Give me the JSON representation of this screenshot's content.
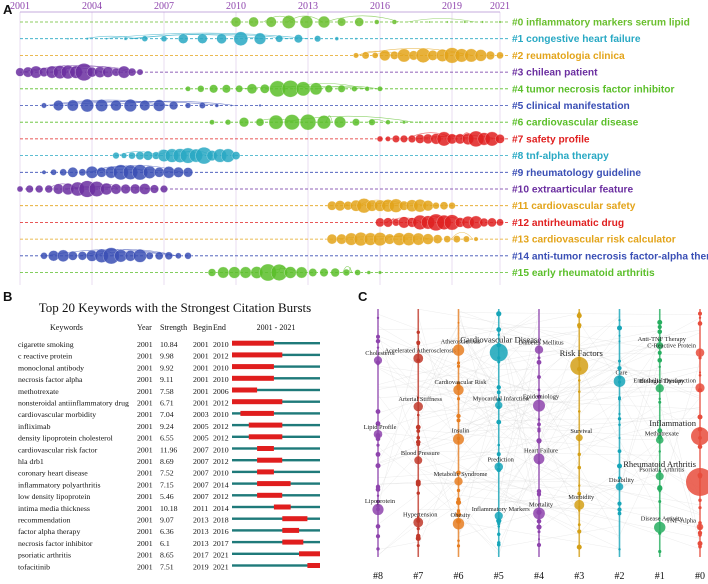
{
  "panels": {
    "a": "A",
    "b": "B",
    "c": "C"
  },
  "chart_data": [
    {
      "type": "timeline",
      "years": [
        "2001",
        "2004",
        "2007",
        "2010",
        "2013",
        "2016",
        "2019",
        "2021"
      ],
      "year_color": "#8e44ad",
      "clusters": [
        {
          "id": "#0",
          "label": "#0 inflammatory markers serum lipid",
          "color": "#6abf2e",
          "start": 2010,
          "end": 2021,
          "peak": 2012.5
        },
        {
          "id": "#1",
          "label": "#1 congestive heart failure",
          "color": "#29a9c4",
          "start": 2003,
          "end": 2015,
          "peak": 2010
        },
        {
          "id": "#2",
          "label": "#2 reumatologia clinica",
          "color": "#e3a41a",
          "start": 2015,
          "end": 2021,
          "peak": 2018.5
        },
        {
          "id": "#3",
          "label": "#3 chilean patient",
          "color": "#6b2fa0",
          "start": 2001,
          "end": 2006,
          "peak": 2003.5
        },
        {
          "id": "#4",
          "label": "#4 tumor necrosis factor inhibitor",
          "color": "#5bbf2a",
          "start": 2008,
          "end": 2016,
          "peak": 2012
        },
        {
          "id": "#5",
          "label": "#5 clinical manifestation",
          "color": "#3a4fb5",
          "start": 2002,
          "end": 2011,
          "peak": 2005
        },
        {
          "id": "#6",
          "label": "#6 cardiovascular disease",
          "color": "#5bbf2a",
          "start": 2009,
          "end": 2019,
          "peak": 2012.5
        },
        {
          "id": "#7",
          "label": "#7 safety profile",
          "color": "#e02020",
          "start": 2016,
          "end": 2021,
          "peak": 2019.5
        },
        {
          "id": "#8",
          "label": "#8 tnf-alpha therapy",
          "color": "#29a9c4",
          "start": 2005,
          "end": 2010,
          "peak": 2008.5
        },
        {
          "id": "#9",
          "label": "#9 rheumatology guideline",
          "color": "#3a4fb5",
          "start": 2002,
          "end": 2008,
          "peak": 2005.5
        },
        {
          "id": "#10",
          "label": "#10 extraarticular feature",
          "color": "#6b2fa0",
          "start": 2001,
          "end": 2007,
          "peak": 2004
        },
        {
          "id": "#11",
          "label": "#11 cardiovascular safety",
          "color": "#e3a41a",
          "start": 2014,
          "end": 2019,
          "peak": 2016
        },
        {
          "id": "#12",
          "label": "#12 antirheumatic drug",
          "color": "#e02020",
          "start": 2016,
          "end": 2021,
          "peak": 2018.5
        },
        {
          "id": "#13",
          "label": "#13 cardiovascular risk calculator",
          "color": "#e3a41a",
          "start": 2014,
          "end": 2020,
          "peak": 2016.5
        },
        {
          "id": "#14",
          "label": "#14 anti-tumor necrosis factor-alpha therapy",
          "color": "#3a4fb5",
          "start": 2002,
          "end": 2008,
          "peak": 2004.5
        },
        {
          "id": "#15",
          "label": "#15 early rheumatoid arthritis",
          "color": "#5bbf2a",
          "start": 2009,
          "end": 2016,
          "peak": 2011.5
        }
      ]
    },
    {
      "type": "burst-table",
      "title": "Top 20 Keywords with the Strongest Citation Bursts",
      "headers": {
        "keywords": "Keywords",
        "year": "Year",
        "strength": "Strength",
        "begin": "Begin",
        "end": "End",
        "range": "2001 - 2021"
      },
      "range": [
        2001,
        2021
      ],
      "rows": [
        {
          "keyword": "cigarette smoking",
          "year": "2001",
          "strength": "10.84",
          "begin": "2001",
          "end": "2010"
        },
        {
          "keyword": "c reactive protein",
          "year": "2001",
          "strength": "9.98",
          "begin": "2001",
          "end": "2012"
        },
        {
          "keyword": "monoclonal antibody",
          "year": "2001",
          "strength": "9.92",
          "begin": "2001",
          "end": "2010"
        },
        {
          "keyword": "necrosis factor alpha",
          "year": "2001",
          "strength": "9.11",
          "begin": "2001",
          "end": "2010"
        },
        {
          "keyword": "methotrexate",
          "year": "2001",
          "strength": "7.58",
          "begin": "2001",
          "end": "2006"
        },
        {
          "keyword": "nonsteroidal antiinflammatory drug",
          "year": "2001",
          "strength": "6.71",
          "begin": "2001",
          "end": "2012"
        },
        {
          "keyword": "cardiovascular morbidity",
          "year": "2001",
          "strength": "7.04",
          "begin": "2003",
          "end": "2010"
        },
        {
          "keyword": "infliximab",
          "year": "2001",
          "strength": "9.24",
          "begin": "2005",
          "end": "2012"
        },
        {
          "keyword": "density lipoprotein cholesterol",
          "year": "2001",
          "strength": "6.55",
          "begin": "2005",
          "end": "2012"
        },
        {
          "keyword": "cardiovascular risk factor",
          "year": "2001",
          "strength": "11.96",
          "begin": "2007",
          "end": "2010"
        },
        {
          "keyword": "hla drb1",
          "year": "2001",
          "strength": "8.69",
          "begin": "2007",
          "end": "2012"
        },
        {
          "keyword": "coronary heart disease",
          "year": "2001",
          "strength": "7.52",
          "begin": "2007",
          "end": "2010"
        },
        {
          "keyword": "inflammatory polyarthritis",
          "year": "2001",
          "strength": "7.15",
          "begin": "2007",
          "end": "2014"
        },
        {
          "keyword": "low density lipoprotein",
          "year": "2001",
          "strength": "5.46",
          "begin": "2007",
          "end": "2012"
        },
        {
          "keyword": "intima media thickness",
          "year": "2001",
          "strength": "10.18",
          "begin": "2011",
          "end": "2014"
        },
        {
          "keyword": "recommendation",
          "year": "2001",
          "strength": "9.07",
          "begin": "2013",
          "end": "2018"
        },
        {
          "keyword": "factor alpha therapy",
          "year": "2001",
          "strength": "6.36",
          "begin": "2013",
          "end": "2016"
        },
        {
          "keyword": "necrosis factor inhibitor",
          "year": "2001",
          "strength": "6.1",
          "begin": "2013",
          "end": "2017"
        },
        {
          "keyword": "psoriatic arthritis",
          "year": "2001",
          "strength": "8.65",
          "begin": "2017",
          "end": "2021"
        },
        {
          "keyword": "tofacitinib",
          "year": "2001",
          "strength": "7.51",
          "begin": "2019",
          "end": "2021"
        }
      ],
      "colors": {
        "burst": "#e01e1e",
        "base": "#1f7a7a"
      }
    },
    {
      "type": "network-columns",
      "columns": [
        {
          "id": "#8",
          "color": "#8e44ad",
          "label": "#8",
          "items": [
            "Cholesterol",
            "Lipid Profile",
            "Lipoprotein"
          ]
        },
        {
          "id": "#7",
          "color": "#c0392b",
          "label": "#7",
          "items": [
            "Accelerated Atherosclerosis",
            "Arterial Stiffness",
            "Blood Pressure",
            "Hypertension"
          ]
        },
        {
          "id": "#6",
          "color": "#e67e22",
          "label": "#6",
          "items": [
            "Atherosclerosis",
            "Cardiovascular Risk",
            "Insulin",
            "Metabolic Syndrome",
            "Obesity"
          ]
        },
        {
          "id": "#5",
          "color": "#16a5b8",
          "label": "#5",
          "items": [
            "Cardiovascular Disease",
            "Myocardial Infarction",
            "Prediction",
            "Inflammatory Markers"
          ]
        },
        {
          "id": "#4",
          "color": "#8e44ad",
          "label": "#4",
          "items": [
            "Diabetes Mellitus",
            "Epidemiology",
            "Heart Failure",
            "Mortality"
          ]
        },
        {
          "id": "#3",
          "color": "#d4a017",
          "label": "#3",
          "items": [
            "Risk Factors",
            "Survival",
            "Morbidity"
          ]
        },
        {
          "id": "#2",
          "color": "#16a5b8",
          "label": "#2",
          "items": [
            "Care",
            "Disability"
          ]
        },
        {
          "id": "#1",
          "color": "#27ae60",
          "label": "#1",
          "items": [
            "Anti-TNF Therapy",
            "Biologic Therapy",
            "Methotrexate",
            "Psoriatic Arthritis",
            "Disease Activity"
          ]
        },
        {
          "id": "#0",
          "color": "#e74c3c",
          "label": "#0",
          "items": [
            "C-Reactive Protein",
            "Endothelial Dysfunction",
            "Inflammation",
            "Rheumatoid Arthritis",
            "TNF-Alpha"
          ]
        }
      ]
    }
  ]
}
